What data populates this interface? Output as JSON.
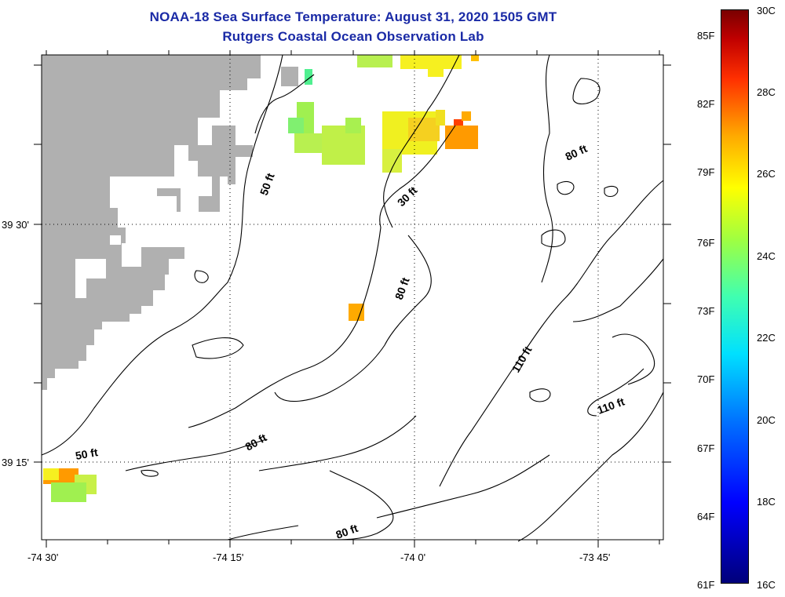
{
  "header": {
    "title": "NOAA-18 Sea Surface Temperature:  August 31, 2020 1505 GMT",
    "subtitle": "Rutgers Coastal Ocean Observation Lab"
  },
  "axes": {
    "x_ticks": [
      "-74 30'",
      "-74 15'",
      "-74 0'",
      "-73 45'"
    ],
    "y_ticks": [
      "39 30'",
      "39 15'"
    ]
  },
  "contour_labels": [
    "50 ft",
    "30 ft",
    "80 ft",
    "80 ft",
    "110 ft",
    "110 ft",
    "50 ft",
    "80 ft",
    "80 ft"
  ],
  "colorbar": {
    "fahrenheit": [
      "85F",
      "82F",
      "79F",
      "76F",
      "73F",
      "70F",
      "67F",
      "64F",
      "61F"
    ],
    "celsius": [
      "30C",
      "28C",
      "26C",
      "24C",
      "22C",
      "20C",
      "18C",
      "16C"
    ],
    "colors": [
      "#00007a",
      "#0000ff",
      "#00e0ff",
      "#a0ff40",
      "#ffff00",
      "#ffaa00",
      "#ff3000",
      "#7a0000"
    ]
  },
  "colors": {
    "title": "#1a2aa6",
    "land": "#b0b0b0",
    "contour": "#000000"
  }
}
